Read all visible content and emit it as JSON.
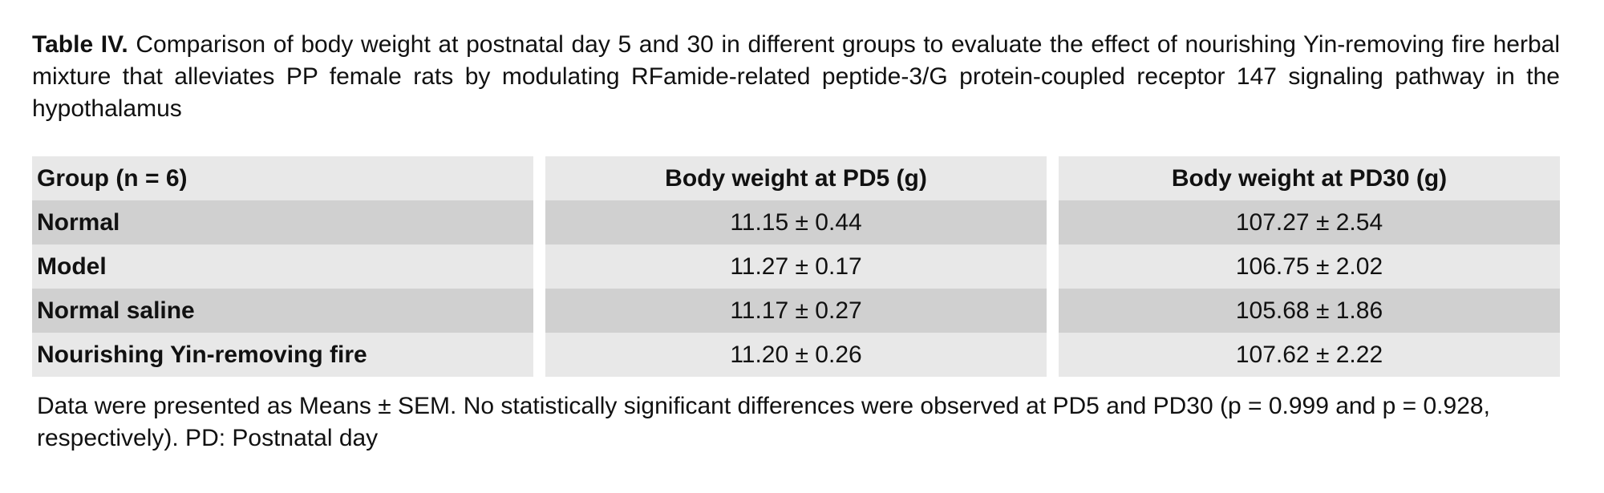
{
  "caption": {
    "label": "Table IV.",
    "text": "Comparison of body weight at postnatal day 5 and 30 in different groups to evaluate the effect of nourishing Yin-removing fire herbal mixture that alleviates PP female rats by modulating RFamide-related peptide-3/G protein-coupled receptor 147 signaling pathway in the hypothalamus"
  },
  "table": {
    "headers": [
      "Group (n = 6)",
      "Body weight at PD5 (g)",
      "Body weight at PD30 (g)"
    ],
    "rows": [
      {
        "group": "Normal",
        "pd5": "11.15 ± 0.44",
        "pd30": "107.27 ± 2.54"
      },
      {
        "group": "Model",
        "pd5": "11.27 ± 0.17",
        "pd30": "106.75 ± 2.02"
      },
      {
        "group": "Normal saline",
        "pd5": "11.17 ± 0.27",
        "pd30": "105.68 ± 1.86"
      },
      {
        "group": "Nourishing Yin-removing fire",
        "pd5": "11.20 ± 0.26",
        "pd30": "107.62 ± 2.22"
      }
    ]
  },
  "footnote": "Data were presented as Means ± SEM. No statistically significant differences were observed at PD5 and PD30 (p = 0.999 and p = 0.928, respectively). PD: Postnatal day"
}
